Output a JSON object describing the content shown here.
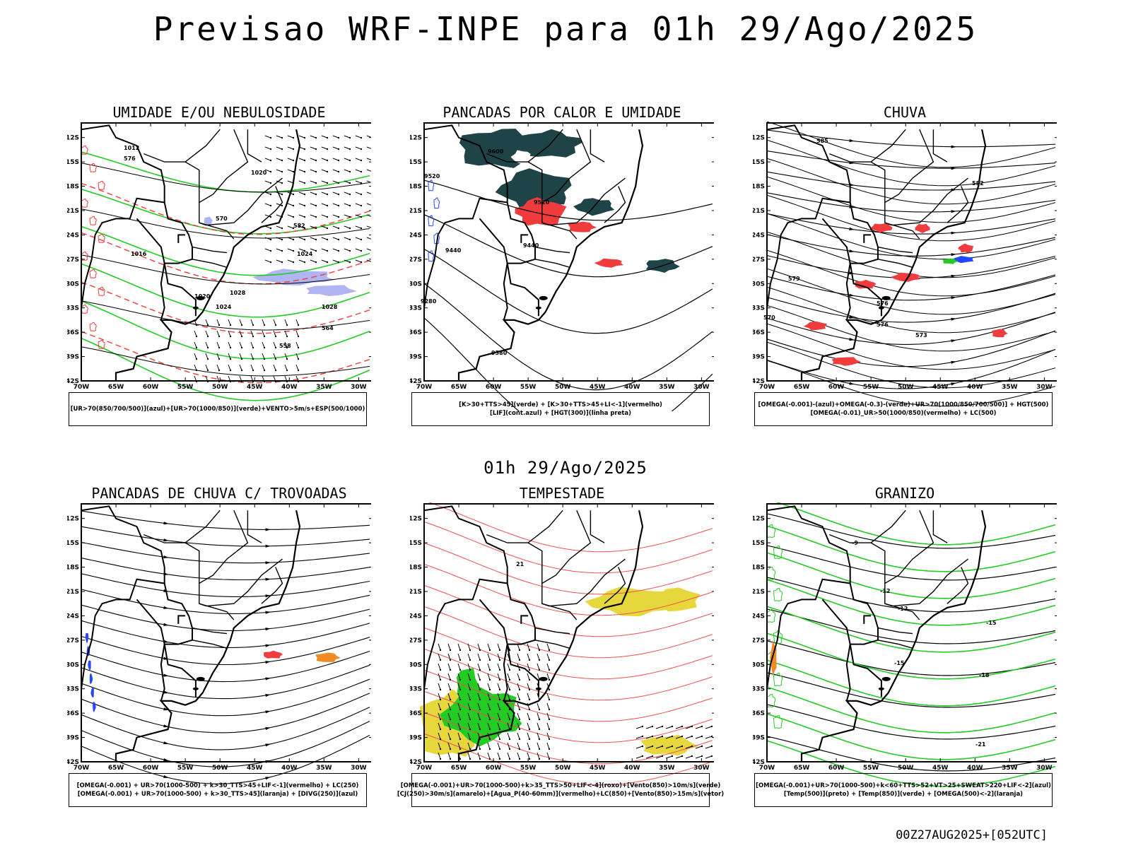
{
  "title": "Previsao WRF-INPE  para 01h 29/Ago/2025",
  "subtitle": "01h 29/Ago/2025",
  "footer": "00Z27AUG2025+[052UTC]",
  "lat_labels": [
    "12S",
    "15S",
    "18S",
    "21S",
    "24S",
    "27S",
    "30S",
    "33S",
    "36S",
    "39S",
    "42S"
  ],
  "lon_labels": [
    "70W",
    "65W",
    "60W",
    "55W",
    "50W",
    "45W",
    "40W",
    "35W",
    "30W"
  ],
  "colors": {
    "red": "#f03c3c",
    "green": "#22cc22",
    "blue": "#2448ff",
    "lavender": "#b0b4f0",
    "dark_teal": "#1e4448",
    "yellow": "#e6d83c",
    "orange": "#f08c28",
    "black": "#000000"
  },
  "panels": [
    {
      "title": "UMIDADE E/OU NEBULOSIDADE",
      "legend": [
        "[UR>70(850/700/500)](azul)+[UR>70(1000/850)](verde)+VENTO>5m/s+ESP(500/1000)"
      ],
      "contour_labels": [
        "1012",
        "1016",
        "1020",
        "1024",
        "1028",
        "1020",
        "1024",
        "1028",
        "576",
        "570",
        "582",
        "564",
        "558"
      ]
    },
    {
      "title": "PANCADAS POR CALOR E UMIDADE",
      "legend": [
        "[K>30+TTS>45](verde) + [K>30+TTS>45+LI<-1](vermelho)",
        "[LIF](cont.azul) + [HGT(300)](linha preta)"
      ],
      "contour_labels": [
        "9600",
        "9520",
        "9440",
        "9380",
        "9280",
        "9520",
        "9440"
      ]
    },
    {
      "title": "CHUVA",
      "legend": [
        "[OMEGA(-0.001)-(azul)+OMEGA(-0.3)-(verde)+UR>70(1000/850/700/500)] + HGT(500)",
        "[OMEGA(-0.01)_UR>50(1000/850)(vermelho) + LC(500)"
      ],
      "contour_labels": [
        "585",
        "582",
        "579",
        "576",
        "573",
        "570",
        "576"
      ]
    },
    {
      "title": "PANCADAS DE CHUVA C/ TROVOADAS",
      "legend": [
        "[OMEGA(-0.001) + UR>70(1000-500) + k>30_TTS>45+LIF<-1](vermelho) + LC(250)",
        "[OMEGA(-0.001) + UR>70(1000-500) + k>30_TTS>45](laranja) + [DIVG(250)](azul)"
      ],
      "contour_labels": []
    },
    {
      "title": "TEMPESTADE",
      "legend": [
        "[OMEGA(-0.001)+UR>70(1000-500)+k>35_TTS>50+LIF<-4](roxo)+[Vento(850)>10m/s](verde)",
        "[CJ(250)>30m/s](amarelo)+[Agua_P(40-60mm)](vermelho)+LC(850)+[Vento(850)>15m/s](vetor)"
      ],
      "contour_labels": [
        "21"
      ]
    },
    {
      "title": "GRANIZO",
      "legend": [
        "[OMEGA(-0.001)+UR>70(1000-500)+k<60+TTS>52+VT>25+SWEAT>220+LIF<-2](azul)",
        "[Temp(500)](preto) + [Temp(850)](verde) + [OMEGA(500)<-2](laranja)"
      ],
      "contour_labels": [
        "-12",
        "-12",
        "-15",
        "-15",
        "-18",
        "-21",
        "-9"
      ]
    }
  ]
}
